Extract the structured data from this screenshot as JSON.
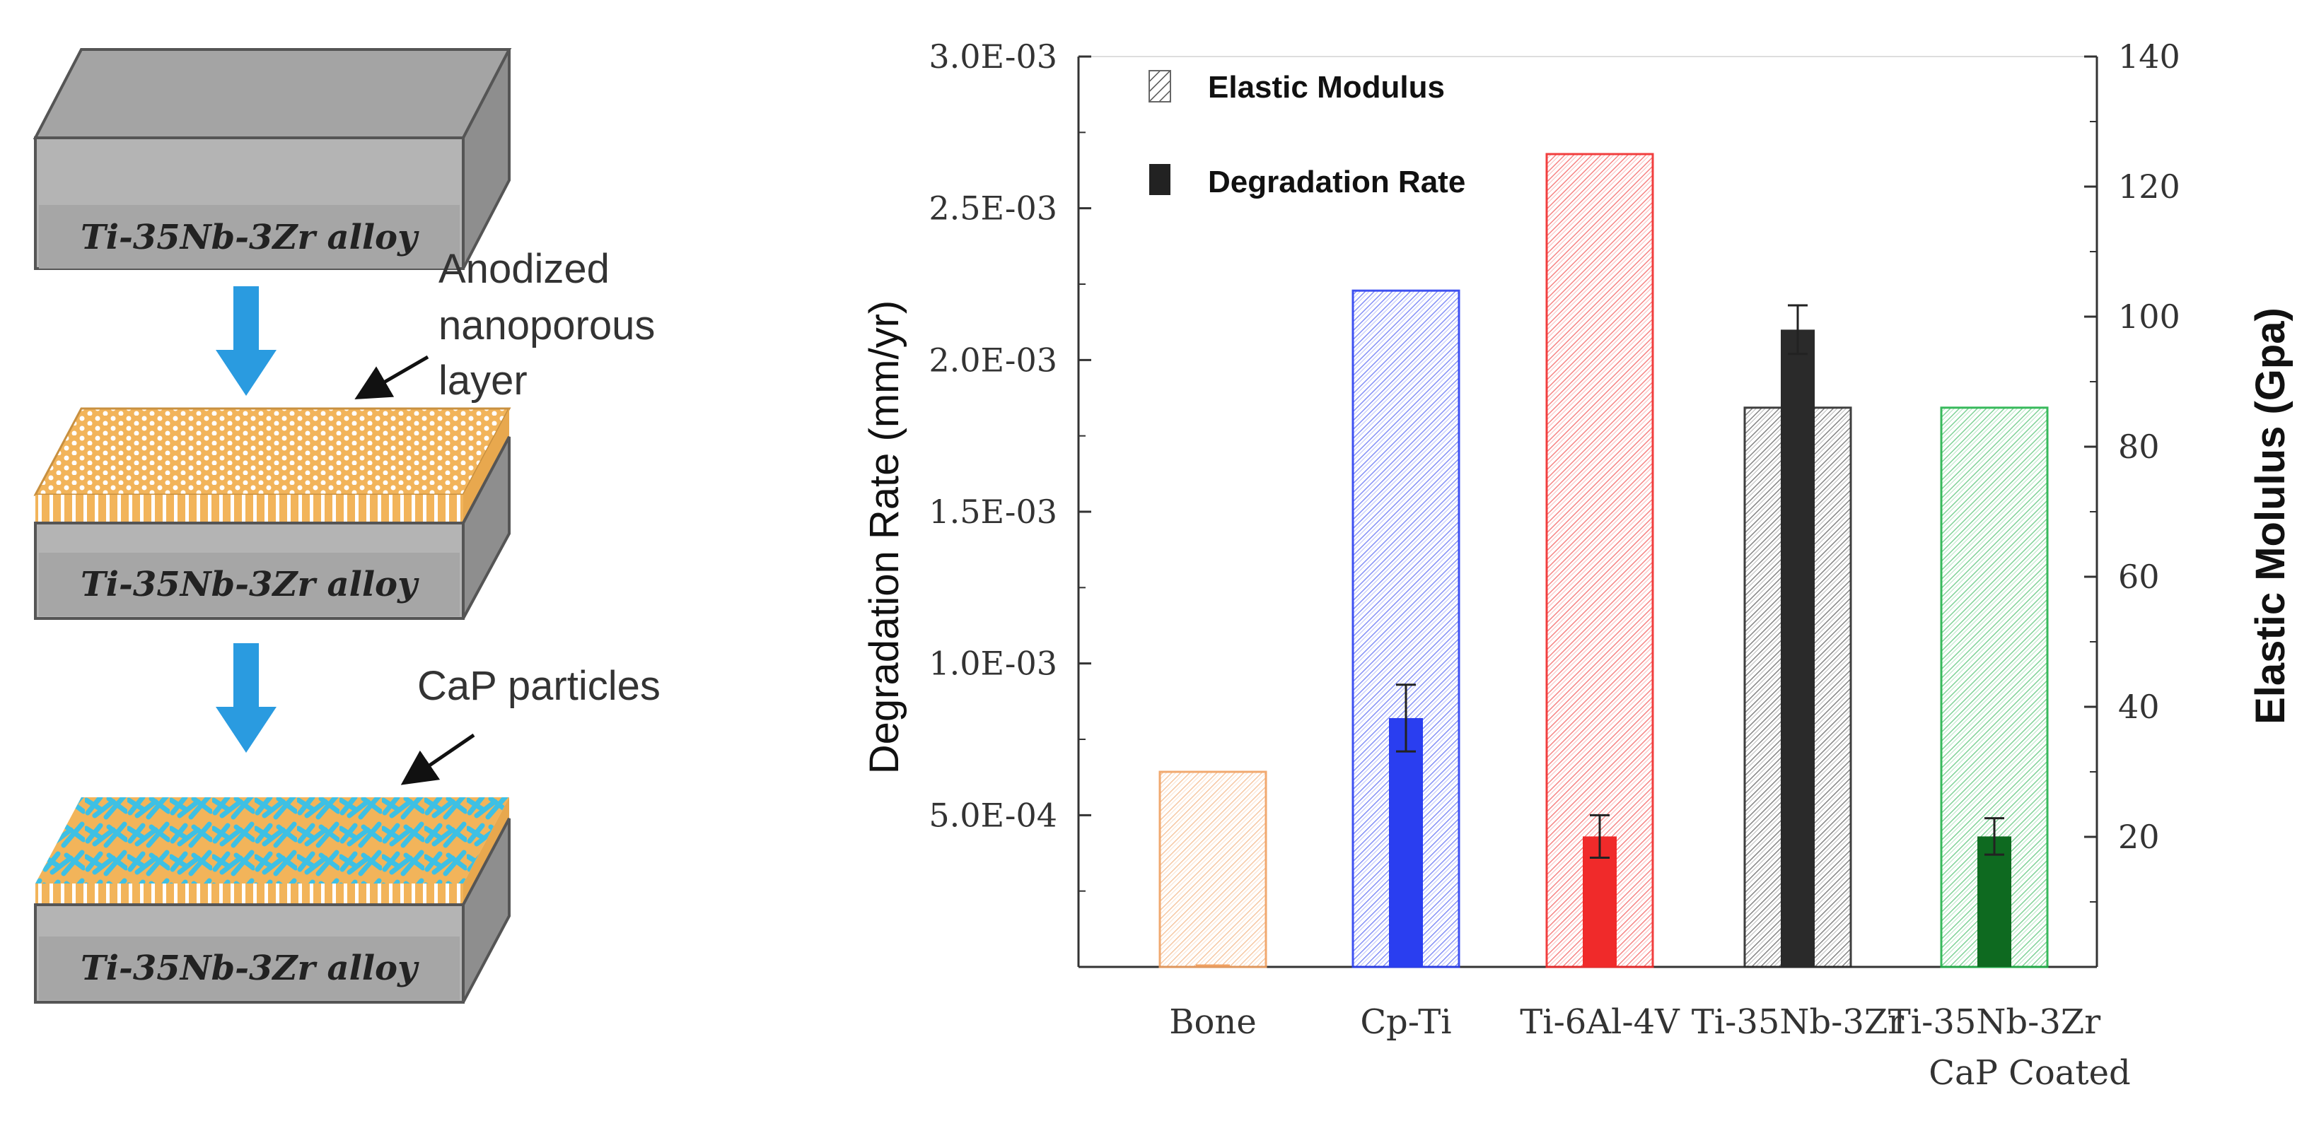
{
  "colors": {
    "bone": "#f0a060",
    "cpti": "#2a3ef0",
    "ti6al4v": "#f02a2a",
    "ti35nb": "#2a2a2a",
    "caped": "#0e6a20",
    "green_hatch": "#22b24a",
    "arrow": "#2a9be0",
    "slab_gray": "#a4a4a4",
    "nanopore": "#f2b45a",
    "cap": "#3ec0e4"
  },
  "schematic": {
    "slab_labels": [
      "Ti-35Nb-3Zr alloy",
      "Ti-35Nb-3Zr alloy",
      "Ti-35Nb-3Zr alloy"
    ],
    "annotation_nanoporous": [
      "Anodized",
      "nanoporous",
      "layer"
    ],
    "annotation_cap": "CaP particles"
  },
  "chart_data": {
    "type": "bar",
    "categories": [
      "Bone",
      "Cp-Ti",
      "Ti-6Al-4V",
      "Ti-35Nb-3Zr",
      "Ti-35Nb-3Zr CaP Coated"
    ],
    "category_lines": [
      [
        "Bone"
      ],
      [
        "Cp-Ti"
      ],
      [
        "Ti-6Al-4V"
      ],
      [
        "Ti-35Nb-3Zr"
      ],
      [
        "Ti-35Nb-3Zr",
        "CaP Coated"
      ]
    ],
    "series": [
      {
        "name": "Elastic Modulus",
        "axis": "right",
        "style": "hatched",
        "values": [
          30,
          104,
          125,
          86,
          86
        ]
      },
      {
        "name": "Degradation Rate",
        "axis": "left",
        "style": "solid",
        "values": [
          0.0,
          0.00082,
          0.00043,
          0.0021,
          0.00043
        ],
        "errors": [
          0.0,
          0.00011,
          7e-05,
          8e-05,
          6e-05
        ]
      }
    ],
    "ylabel_left": "Degradation Rate (mm/yr)",
    "ylabel_right": "Elastic Molulus (Gpa)",
    "ylim_left": [
      0,
      0.003
    ],
    "ylim_right": [
      0,
      140
    ],
    "yticks_left": [
      "5.0E-04",
      "1.0E-03",
      "1.5E-03",
      "2.0E-03",
      "2.5E-03",
      "3.0E-03"
    ],
    "ytick_values_left": [
      0.0005,
      0.001,
      0.0015,
      0.002,
      0.0025,
      0.003
    ],
    "yticks_right": [
      "20",
      "40",
      "60",
      "80",
      "100",
      "120",
      "140"
    ],
    "ytick_values_right": [
      20,
      40,
      60,
      80,
      100,
      120,
      140
    ],
    "legend": [
      "Elastic Modulus",
      "Degradation Rate"
    ],
    "legend_position": "top-left"
  }
}
